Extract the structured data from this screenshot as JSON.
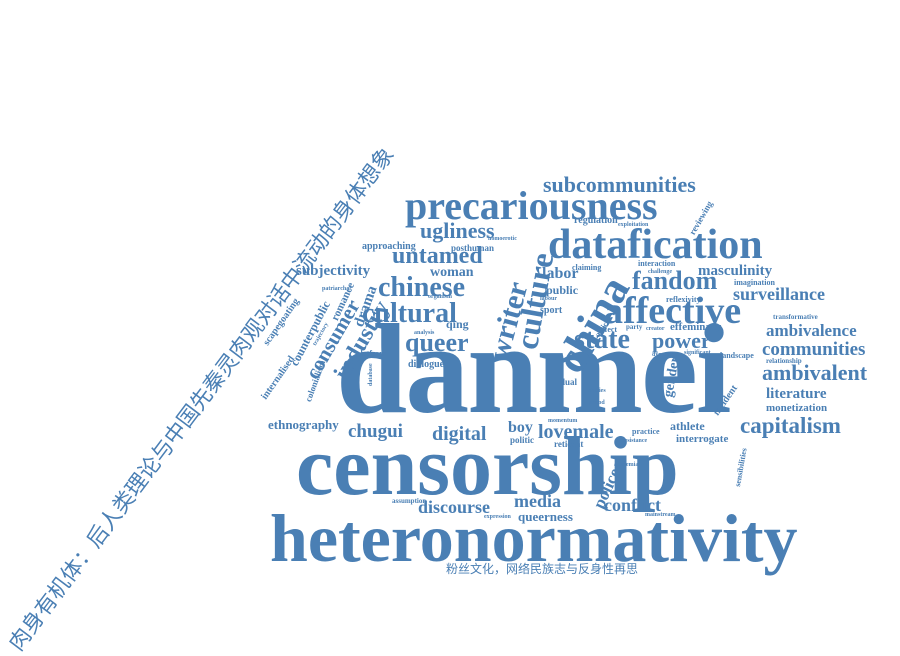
{
  "diagonal_title": "肉身有机体：后人类理论与中国先秦灵肉观对话中流动的身体想象",
  "bottom_caption": "粉丝文化，网络民族志与反身性再思",
  "words": {
    "danmei": "danmei",
    "censorship": "censorship",
    "heteronormativity": "heteronormativity",
    "datafication": "datafication",
    "precariousness": "precariousness",
    "affective": "affective",
    "subcommunities": "subcommunities",
    "china": "china",
    "culture": "culture",
    "chinese": "chinese",
    "cultural": "cultural",
    "queer": "queer",
    "state": "state",
    "fandom": "fandom",
    "untamed": "untamed",
    "ugliness": "ugliness",
    "writer": "writer",
    "industry": "industry",
    "consumer": "consumer",
    "subjectivity": "subjectivity",
    "woman": "woman",
    "labor": "labor",
    "masculinity": "masculinity",
    "surveillance": "surveillance",
    "ambivalence": "ambivalence",
    "communities": "communities",
    "ambivalent": "ambivalent",
    "literature": "literature",
    "monetization": "monetization",
    "capitalism": "capitalism",
    "power": "power",
    "efeminacy": "effeminacy",
    "gender": "gender",
    "chugui": "chugui",
    "digital": "digital",
    "lovemale": "lovemale",
    "boy": "boy",
    "ethnography": "ethnography",
    "discourse": "discourse",
    "media": "media",
    "police": "police",
    "conflict": "conflict",
    "queerness": "queerness",
    "athlete": "athlete",
    "interrogate": "interrogate",
    "drama": "drama",
    "qing": "qing",
    "romance": "romance",
    "counterpublic": "counterpublic",
    "scapegoating": "scapegoating",
    "internalised": "internalised",
    "colonialism": "colonialism",
    "dialogue": "dialogue",
    "platform": "platform",
    "posthuman": "posthuman",
    "approaching": "approaching",
    "regulation": "regulation",
    "reviewing": "reviewing",
    "public": "public",
    "sport": "sport",
    "claiming": "claiming",
    "interaction": "interaction",
    "imagination": "imagination",
    "reflexivity": "reflexivity",
    "landscape": "landscape",
    "transformative": "transformative",
    "relationship": "relationship",
    "incident": "incident",
    "reticent": "reticent",
    "assumption": "assumption",
    "expression": "expression",
    "mainstream": "mainstream",
    "sensibilities": "sensibilities",
    "academia": "academia",
    "homoerotic": "homoerotic",
    "analysis": "analysis",
    "article": "article",
    "party": "party",
    "creator": "creator",
    "practice": "practice",
    "dynamic": "dynamic",
    "significant": "significant",
    "politic": "politic",
    "dual": "dual",
    "momentum": "momentum",
    "resistance": "resistance",
    "exploitation": "exploitation",
    "challenge": "challenge",
    "patriarchal": "patriarchal",
    "trajectory": "trajectory",
    "database": "database",
    "organism": "organism",
    "labour": "labour",
    "affect": "affect",
    "period": "period",
    "studies": "studies"
  },
  "colors": {
    "word": "#4a7fb4"
  }
}
